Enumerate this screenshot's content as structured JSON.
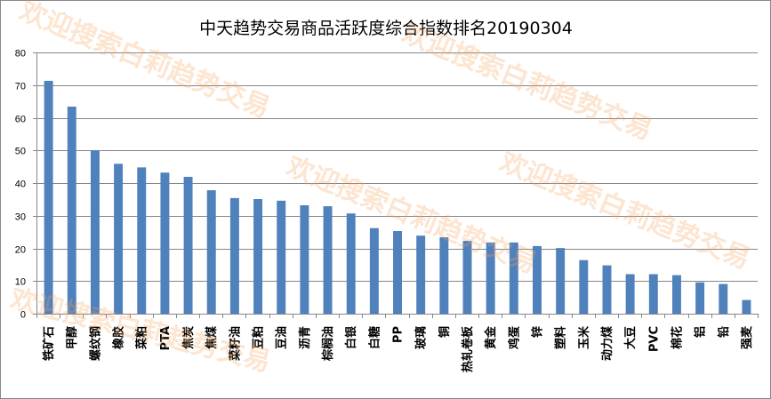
{
  "chart_data": {
    "type": "bar",
    "title": "中天趋势交易商品活跃度综合指数排名20190304",
    "xlabel": "",
    "ylabel": "",
    "ylim": [
      0,
      80
    ],
    "yticks": [
      0,
      10,
      20,
      30,
      40,
      50,
      60,
      70,
      80
    ],
    "grid": true,
    "legend": "none",
    "bar_color": "#4f81bd",
    "categories": [
      "铁矿石",
      "甲醇",
      "螺纹钢",
      "橡胶",
      "菜粕",
      "PTA",
      "焦炭",
      "焦煤",
      "菜籽油",
      "豆粕",
      "豆油",
      "沥青",
      "棕榈油",
      "白银",
      "白糖",
      "PP",
      "玻璃",
      "铜",
      "热轧卷板",
      "黄金",
      "鸡蛋",
      "锌",
      "塑料",
      "玉米",
      "动力煤",
      "大豆",
      "PVC",
      "棉花",
      "铝",
      "铅",
      "强麦"
    ],
    "values": [
      71.3,
      63.4,
      50.0,
      45.9,
      44.8,
      43.2,
      41.9,
      37.8,
      35.4,
      35.1,
      34.6,
      33.2,
      32.9,
      30.7,
      26.2,
      25.3,
      23.9,
      23.4,
      22.3,
      21.8,
      21.8,
      20.7,
      20.1,
      16.4,
      14.8,
      12.1,
      12.1,
      11.8,
      9.6,
      9.1,
      4.2
    ]
  },
  "watermark": {
    "text": "欢迎搜索白莉趋势交易",
    "color": "#f7a35c"
  }
}
